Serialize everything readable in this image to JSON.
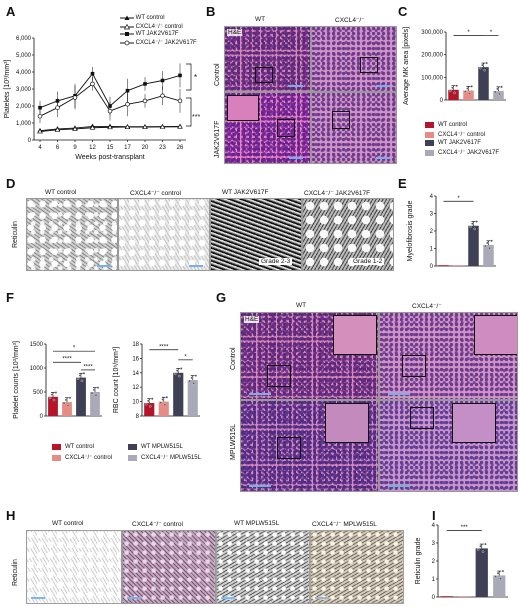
{
  "panels": {
    "A": "A",
    "B": "B",
    "C": "C",
    "D": "D",
    "E": "E",
    "F": "F",
    "G": "G",
    "H": "H",
    "I": "I"
  },
  "panel_a": {
    "legend": [
      "WT control",
      "CXCL4⁻/⁻ control",
      "WT JAK2V617F",
      "CXCL4⁻/⁻ JAK2V617F"
    ],
    "sig": [
      "*",
      "***"
    ]
  },
  "panel_b": {
    "cols": [
      "WT",
      "CXCL4⁻/⁻"
    ],
    "rows": [
      "Control",
      "JAK2V617F"
    ],
    "he": "H&E"
  },
  "panel_c": {
    "legend": [
      "WT control",
      "CXCL4⁻/⁻ control",
      "WT JAK2V617F",
      "CXCL4⁻/⁻ JAK2V617F"
    ],
    "sig": [
      "*",
      "*"
    ]
  },
  "panel_d": {
    "cols": [
      "WT control",
      "CXCL4⁻/⁻ control",
      "WT JAK2V617F",
      "CXCL4⁻/⁻ JAK2V617F"
    ],
    "rowlabel": "Reticulin",
    "grades": [
      "Grade 2-3",
      "Grade 1-2"
    ]
  },
  "panel_e": {
    "sig": "*"
  },
  "panel_f": {
    "legend": [
      "WT control",
      "CXCL4⁻/⁻ control",
      "WT MPLW515L",
      "CXCL4⁻/⁻ MPLW515L"
    ],
    "sig_left": [
      "*",
      "****",
      "****"
    ],
    "sig_right": [
      "****",
      "*"
    ]
  },
  "panel_g": {
    "cols": [
      "WT",
      "CXCL4⁻/⁻"
    ],
    "rows": [
      "Control",
      "MPLW515L"
    ],
    "he": "H&E"
  },
  "panel_h": {
    "cols": [
      "WT control",
      "CXCL4⁻/⁻ control",
      "WT MPLW515L",
      "CXCL4⁻/⁻ MPLW515L"
    ],
    "rowlabel": "Reticulin"
  },
  "panel_i": {
    "sig": "***"
  },
  "colors": {
    "wt_control": "#b5152b",
    "cxcl4_control": "#e58c84",
    "wt_mut": "#3f3f55",
    "cxcl4_mut": "#a9a9b8"
  },
  "chart_data": [
    {
      "id": "A",
      "type": "line",
      "xlabel": "Weeks post-transplant",
      "ylabel": "Platelets [10³/mm³]",
      "x": [
        4,
        6,
        9,
        12,
        15,
        17,
        20,
        23,
        26
      ],
      "xticks": [
        "4",
        "6",
        "9",
        "12",
        "15",
        "17",
        "20",
        "23",
        "26"
      ],
      "ylim": [
        0,
        6000
      ],
      "yticks": [
        "0",
        "1,000",
        "2,000",
        "3,000",
        "4,000",
        "5,000",
        "6,000"
      ],
      "series": [
        {
          "name": "WT control",
          "values": [
            550,
            650,
            700,
            800,
            800,
            780,
            780,
            790,
            800
          ]
        },
        {
          "name": "CXCL4⁻/⁻ control",
          "values": [
            500,
            600,
            650,
            720,
            750,
            760,
            760,
            770,
            780
          ]
        },
        {
          "name": "WT JAK2V617F",
          "values": [
            1900,
            2300,
            2600,
            3900,
            2000,
            2900,
            3300,
            3500,
            3800
          ]
        },
        {
          "name": "CXCL4⁻/⁻ JAK2V617F",
          "values": [
            1400,
            1900,
            2500,
            3300,
            1700,
            2100,
            2300,
            2600,
            2300
          ]
        }
      ]
    },
    {
      "id": "C",
      "type": "bar",
      "ylabel": "Average MK area [pixels]",
      "categories": [
        "WT control",
        "CXCL4⁻/⁻ control",
        "WT JAK2V617F",
        "CXCL4⁻/⁻ JAK2V617F"
      ],
      "values": [
        45000,
        42000,
        145000,
        40000
      ],
      "ylim": [
        0,
        300000
      ],
      "yticks": [
        "0",
        "100,000",
        "200,000",
        "300,000"
      ]
    },
    {
      "id": "E",
      "type": "bar",
      "ylabel": "Myelofibrosis grade",
      "categories": [
        "WT control",
        "CXCL4⁻/⁻ control",
        "WT JAK2V617F",
        "CXCL4⁻/⁻ JAK2V617F"
      ],
      "values": [
        0,
        0,
        2.3,
        1.2
      ],
      "ylim": [
        0,
        4
      ],
      "yticks": [
        "0",
        "1",
        "2",
        "3",
        "4"
      ]
    },
    {
      "id": "F1",
      "type": "bar",
      "ylabel": "Platelet counts [10³/mm³]",
      "categories": [
        "WT control",
        "CXCL4⁻/⁻ control",
        "WT MPLW515L",
        "CXCL4⁻/⁻ MPLW515L"
      ],
      "values": [
        400,
        290,
        800,
        500
      ],
      "ylim": [
        0,
        1500
      ],
      "yticks": [
        "0",
        "500",
        "1000",
        "1500"
      ]
    },
    {
      "id": "F2",
      "type": "bar",
      "ylabel": "RBC count [10⁶/mm³]",
      "categories": [
        "WT control",
        "CXCL4⁻/⁻ control",
        "WT MPLW515L",
        "CXCL4⁻/⁻ MPLW515L"
      ],
      "values": [
        9.8,
        10.0,
        14.0,
        13.0
      ],
      "ylim": [
        8,
        18
      ],
      "yticks": [
        "8",
        "10",
        "12",
        "14",
        "16",
        "18"
      ]
    },
    {
      "id": "I",
      "type": "bar",
      "ylabel": "Reticulin grade",
      "categories": [
        "WT control",
        "CXCL4⁻/⁻ control",
        "WT MPLW515L",
        "CXCL4⁻/⁻ MPLW515L"
      ],
      "values": [
        0,
        0,
        2.7,
        1.2
      ],
      "ylim": [
        0,
        4
      ],
      "yticks": [
        "0",
        "1",
        "2",
        "3",
        "4"
      ]
    }
  ]
}
